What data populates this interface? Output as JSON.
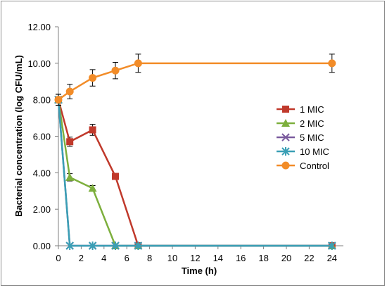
{
  "chart_data": {
    "type": "line",
    "title": "",
    "xlabel": "Time (h)",
    "ylabel": "Bacterial concentration (log CFU/mL)",
    "xlim": [
      0,
      25
    ],
    "ylim": [
      0,
      12
    ],
    "x_ticks": [
      "0",
      "2",
      "4",
      "6",
      "8",
      "10",
      "12",
      "14",
      "16",
      "18",
      "20",
      "22",
      "24"
    ],
    "y_ticks": [
      "0.00",
      "2.00",
      "4.00",
      "6.00",
      "8.00",
      "10.00",
      "12.00"
    ],
    "grid": false,
    "legend_position": "right",
    "series": [
      {
        "name": "1 MIC",
        "color": "#c0392b",
        "marker": "square",
        "points": [
          [
            0,
            8.0
          ],
          [
            1,
            5.7
          ],
          [
            3,
            6.35
          ],
          [
            5,
            3.8
          ],
          [
            7,
            0.0
          ],
          [
            24,
            0.0
          ]
        ],
        "errors": [
          0.3,
          0.25,
          0.3,
          0,
          0,
          0
        ]
      },
      {
        "name": "2 MIC",
        "color": "#7daf3d",
        "marker": "triangle",
        "points": [
          [
            0,
            8.0
          ],
          [
            1,
            3.75
          ],
          [
            3,
            3.15
          ],
          [
            5,
            0.0
          ],
          [
            7,
            0.0
          ],
          [
            24,
            0.0
          ]
        ],
        "errors": [
          0.3,
          0.2,
          0.15,
          0,
          0,
          0
        ]
      },
      {
        "name": "5 MIC",
        "color": "#7b5b9e",
        "marker": "x",
        "points": [
          [
            0,
            8.0
          ],
          [
            1,
            0.0
          ],
          [
            3,
            0.0
          ],
          [
            5,
            0.0
          ],
          [
            7,
            0.0
          ],
          [
            24,
            0.0
          ]
        ],
        "errors": [
          0,
          0,
          0,
          0,
          0,
          0
        ]
      },
      {
        "name": "10 MIC",
        "color": "#3a9fb5",
        "marker": "star",
        "points": [
          [
            0,
            8.0
          ],
          [
            1,
            0.0
          ],
          [
            3,
            0.0
          ],
          [
            5,
            0.0
          ],
          [
            7,
            0.0
          ],
          [
            24,
            0.0
          ]
        ],
        "errors": [
          0,
          0,
          0,
          0,
          0,
          0
        ]
      },
      {
        "name": "Control",
        "color": "#f28c28",
        "marker": "circle",
        "points": [
          [
            0,
            8.0
          ],
          [
            1,
            8.45
          ],
          [
            3,
            9.2
          ],
          [
            5,
            9.6
          ],
          [
            7,
            10.0
          ],
          [
            24,
            10.0
          ]
        ],
        "errors": [
          0.3,
          0.4,
          0.45,
          0.45,
          0.5,
          0.5
        ]
      }
    ]
  }
}
